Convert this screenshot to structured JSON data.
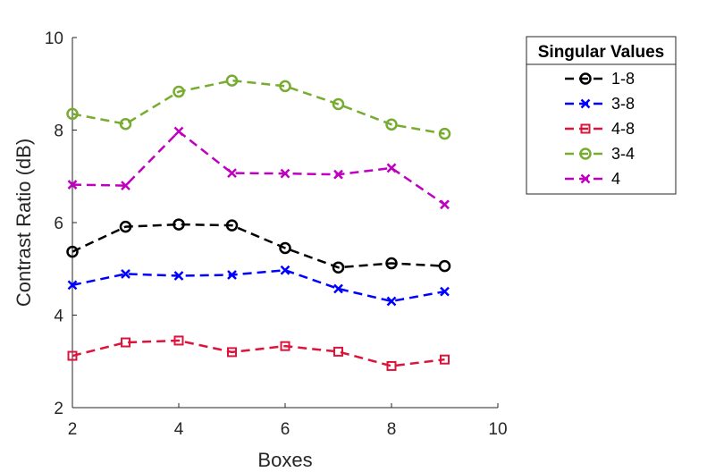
{
  "chart_data": {
    "type": "line",
    "xlabel": "Boxes",
    "ylabel": "Contrast Ratio (dB)",
    "xlim": [
      2,
      10
    ],
    "ylim": [
      2,
      10
    ],
    "xticks": [
      "2",
      "4",
      "6",
      "8",
      "10"
    ],
    "yticks": [
      "2",
      "4",
      "6",
      "8",
      "10"
    ],
    "grid": false,
    "legend": {
      "title": "Singular Values",
      "placement": "outside-top-right"
    },
    "x": [
      2,
      3,
      4,
      5,
      6,
      7,
      8,
      9
    ],
    "series": [
      {
        "name": "1-8",
        "color": "#000000",
        "marker": "circle",
        "line": "dashed",
        "values": [
          5.37,
          5.91,
          5.96,
          5.94,
          5.45,
          5.03,
          5.12,
          5.06
        ]
      },
      {
        "name": "3-8",
        "color": "#0000ff",
        "marker": "x",
        "line": "dashed",
        "values": [
          4.65,
          4.89,
          4.85,
          4.87,
          4.97,
          4.57,
          4.3,
          4.51
        ]
      },
      {
        "name": "4-8",
        "color": "#dc143c",
        "marker": "square",
        "line": "dashed",
        "values": [
          3.12,
          3.41,
          3.45,
          3.2,
          3.33,
          3.21,
          2.9,
          3.04
        ]
      },
      {
        "name": "3-4",
        "color": "#77ac30",
        "marker": "circle",
        "line": "dashed",
        "values": [
          8.35,
          8.13,
          8.83,
          9.07,
          8.95,
          8.56,
          8.12,
          7.92
        ]
      },
      {
        "name": "4",
        "color": "#c000c0",
        "marker": "x",
        "line": "dashed",
        "values": [
          6.82,
          6.8,
          7.97,
          7.07,
          7.06,
          7.04,
          7.18,
          6.39
        ]
      }
    ]
  }
}
